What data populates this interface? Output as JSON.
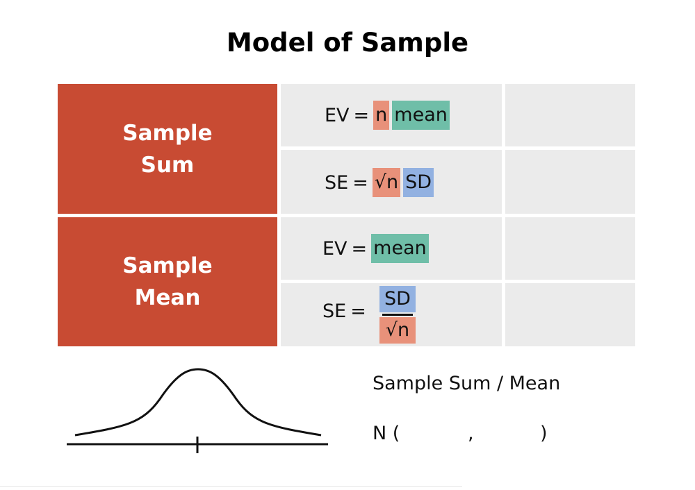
{
  "title": "Model of Sample",
  "rows": {
    "sum": {
      "label_line1": "Sample",
      "label_line2": "Sum",
      "ev": {
        "lhs": "EV",
        "eq": "=",
        "n": "n",
        "mean": "mean"
      },
      "se": {
        "lhs": "SE",
        "eq": "=",
        "sqrt_n": "√n",
        "sd": "SD"
      }
    },
    "mean": {
      "label_line1": "Sample",
      "label_line2": "Mean",
      "ev": {
        "lhs": "EV",
        "eq": "=",
        "mean": "mean"
      },
      "se": {
        "lhs": "SE",
        "eq": "=",
        "numerator": "SD",
        "denominator": "√n"
      }
    }
  },
  "distribution": {
    "caption": "Sample Sum / Mean",
    "notation_open": "N (",
    "notation_comma": ",",
    "notation_close": ")"
  },
  "colors": {
    "red": "#c84b33",
    "gray_cell": "#ebebeb",
    "highlight_n": "#e8917a",
    "highlight_mean": "#6fbea8",
    "highlight_sd": "#92b1e1"
  }
}
